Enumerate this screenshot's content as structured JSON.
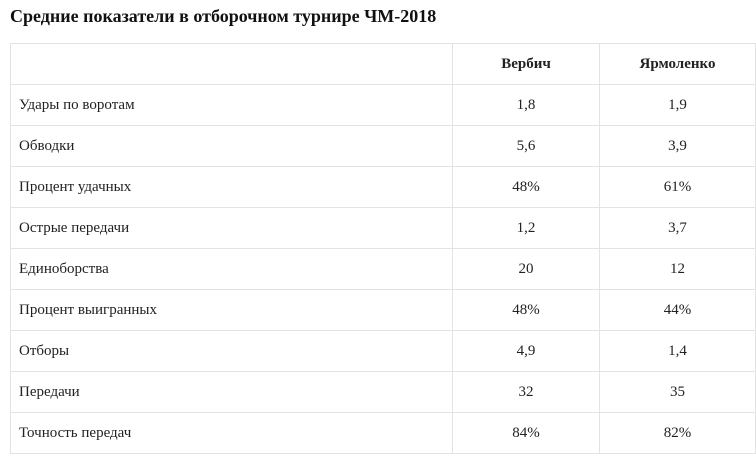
{
  "page": {
    "title": "Средние показатели в отборочном турнире ЧМ-2018"
  },
  "table": {
    "headers": [
      "",
      "Вербич",
      "Ярмоленко"
    ],
    "rows": [
      {
        "label": "Удары по воротам",
        "v1": "1,8",
        "v2": "1,9"
      },
      {
        "label": "Обводки",
        "v1": "5,6",
        "v2": "3,9"
      },
      {
        "label": "Процент удачных",
        "v1": "48%",
        "v2": "61%"
      },
      {
        "label": "Острые передачи",
        "v1": "1,2",
        "v2": "3,7"
      },
      {
        "label": "Единоборства",
        "v1": "20",
        "v2": "12"
      },
      {
        "label": "Процент выигранных",
        "v1": "48%",
        "v2": "44%"
      },
      {
        "label": "Отборы",
        "v1": "4,9",
        "v2": "1,4"
      },
      {
        "label": "Передачи",
        "v1": "32",
        "v2": "35"
      },
      {
        "label": "Точность передач",
        "v1": "84%",
        "v2": "82%"
      }
    ]
  },
  "colors": {
    "border": "#e3e3e3",
    "text": "#222222",
    "background": "#ffffff"
  }
}
